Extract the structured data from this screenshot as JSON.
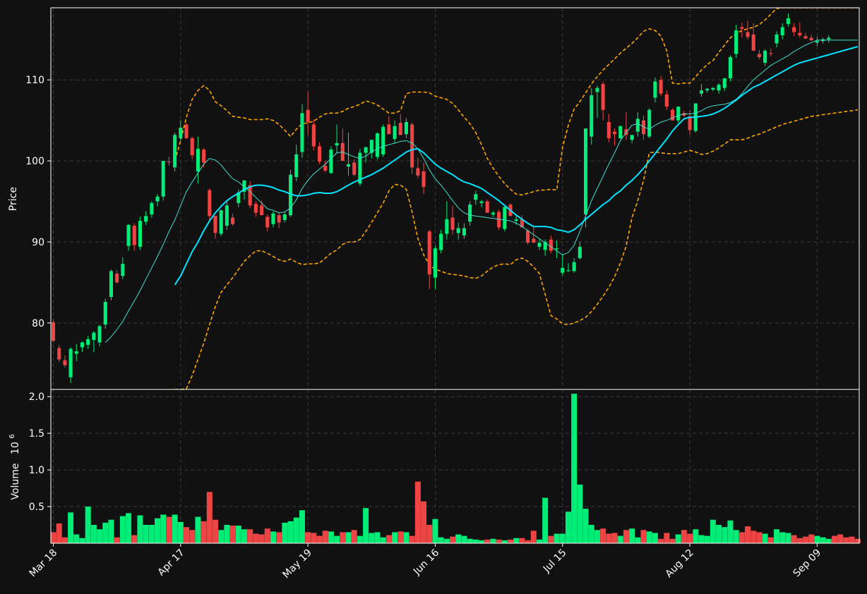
{
  "chart_data": {
    "type": "candlestick",
    "colors": {
      "background": "#111111",
      "up": "#00ee77",
      "down": "#ee4444",
      "bollinger": "#ffa500",
      "ma_short": "#40e0d0",
      "ma_long": "#00e5ff",
      "grid": "#3a3a3a",
      "text": "#ffffff"
    },
    "price_panel": {
      "ylabel": "Price",
      "yticks": [
        80,
        90,
        100,
        110
      ],
      "ylim": [
        71.8,
        118.9
      ],
      "grid": true
    },
    "volume_panel": {
      "ylabel": "Volume",
      "ylabel_multiplier": "10",
      "ylabel_exponent": "6",
      "yticks": [
        "0.5",
        "1.0",
        "1.5",
        "2.0"
      ],
      "ytick_values": [
        0.5,
        1.0,
        1.5,
        2.0
      ],
      "ylim": [
        0,
        2.06
      ],
      "grid": true
    },
    "x_axis": {
      "tick_labels": [
        "Mar 18",
        "Apr 17",
        "May 19",
        "Jun 16",
        "Jul 15",
        "Aug 12",
        "Sep 09"
      ],
      "tick_index": [
        0,
        22,
        44,
        66,
        88,
        110,
        132
      ],
      "label_rotation": 45,
      "n_candles": 140
    },
    "candles_ohlc": [
      [
        80.1,
        80.5,
        77.6,
        77.8
      ],
      [
        76.9,
        77.3,
        75.2,
        75.5
      ],
      [
        75.4,
        76.0,
        74.5,
        74.8
      ],
      [
        73.3,
        77.0,
        72.6,
        76.8
      ],
      [
        76.2,
        77.4,
        75.3,
        76.5
      ],
      [
        77.0,
        77.7,
        76.4,
        77.6
      ],
      [
        77.3,
        78.4,
        76.8,
        78.0
      ],
      [
        77.9,
        79.0,
        76.4,
        78.8
      ],
      [
        77.6,
        79.8,
        77.1,
        79.6
      ],
      [
        79.8,
        83.0,
        79.3,
        82.6
      ],
      [
        83.2,
        86.6,
        82.8,
        86.4
      ],
      [
        86.1,
        86.5,
        84.9,
        85.0
      ],
      [
        85.8,
        88.1,
        85.4,
        87.3
      ],
      [
        89.5,
        92.2,
        88.9,
        92.1
      ],
      [
        92.0,
        92.3,
        88.9,
        89.6
      ],
      [
        89.4,
        93.1,
        89.0,
        92.6
      ],
      [
        92.5,
        93.8,
        92.1,
        93.2
      ],
      [
        93.4,
        95.0,
        93.0,
        94.8
      ],
      [
        95.0,
        95.9,
        94.4,
        95.6
      ],
      [
        95.6,
        100.0,
        95.1,
        100.0
      ],
      [
        99.9,
        100.5,
        99.4,
        99.8
      ],
      [
        99.2,
        103.5,
        98.7,
        103.2
      ],
      [
        102.8,
        105.0,
        102.5,
        104.1
      ],
      [
        104.5,
        104.7,
        102.7,
        102.8
      ],
      [
        102.8,
        103.0,
        100.2,
        100.7
      ],
      [
        98.7,
        103.0,
        97.2,
        101.5
      ],
      [
        101.4,
        101.6,
        99.2,
        99.8
      ],
      [
        96.4,
        96.6,
        92.6,
        93.2
      ],
      [
        93.2,
        93.3,
        90.4,
        91.1
      ],
      [
        91.0,
        94.0,
        90.7,
        93.9
      ],
      [
        92.0,
        95.0,
        91.5,
        94.5
      ],
      [
        93.0,
        93.5,
        92.0,
        92.2
      ],
      [
        94.8,
        96.5,
        94.3,
        96.1
      ],
      [
        96.2,
        97.0,
        95.2,
        97.6
      ],
      [
        97.0,
        97.5,
        94.2,
        94.5
      ],
      [
        94.7,
        95.0,
        93.1,
        93.6
      ],
      [
        94.5,
        95.1,
        93.5,
        93.3
      ],
      [
        93.1,
        93.4,
        91.3,
        91.8
      ],
      [
        92.2,
        93.8,
        91.8,
        93.5
      ],
      [
        93.3,
        93.6,
        91.7,
        92.4
      ],
      [
        92.7,
        93.6,
        92.4,
        93.4
      ],
      [
        93.3,
        98.9,
        93.1,
        98.3
      ],
      [
        98.0,
        102.0,
        97.5,
        100.8
      ],
      [
        101.1,
        107.0,
        100.4,
        105.9
      ],
      [
        106.3,
        108.5,
        103.2,
        104.8
      ],
      [
        104.5,
        105.1,
        101.3,
        101.8
      ],
      [
        101.8,
        102.3,
        99.6,
        99.9
      ],
      [
        99.4,
        100.0,
        98.6,
        98.8
      ],
      [
        98.5,
        101.8,
        98.4,
        101.4
      ],
      [
        101.9,
        104.5,
        101.0,
        102.2
      ],
      [
        102.2,
        104.0,
        101.1,
        100.0
      ],
      [
        99.3,
        103.5,
        98.2,
        99.6
      ],
      [
        99.8,
        100.2,
        98.1,
        98.3
      ],
      [
        97.2,
        101.5,
        96.9,
        101.0
      ],
      [
        101.0,
        101.5,
        99.8,
        101.7
      ],
      [
        101.0,
        102.6,
        100.3,
        102.6
      ],
      [
        100.5,
        103.5,
        100.2,
        103.4
      ],
      [
        100.8,
        104.5,
        100.5,
        104.2
      ],
      [
        104.5,
        105.5,
        103.4,
        103.3
      ],
      [
        102.7,
        105.0,
        102.1,
        104.3
      ],
      [
        104.7,
        105.8,
        103.6,
        103.2
      ],
      [
        103.3,
        105.3,
        102.8,
        104.8
      ],
      [
        104.5,
        104.7,
        98.4,
        99.2
      ],
      [
        99.1,
        100.4,
        97.9,
        98.2
      ],
      [
        98.7,
        99.8,
        95.9,
        96.8
      ],
      [
        91.3,
        91.5,
        84.2,
        86.0
      ],
      [
        85.6,
        89.5,
        84.2,
        89.2
      ],
      [
        89.0,
        91.5,
        88.6,
        91.0
      ],
      [
        91.0,
        95.0,
        90.3,
        92.8
      ],
      [
        93.0,
        94.5,
        90.9,
        91.5
      ],
      [
        91.1,
        92.4,
        90.3,
        91.7
      ],
      [
        90.8,
        92.3,
        90.4,
        91.7
      ],
      [
        92.5,
        95.0,
        92.0,
        94.6
      ],
      [
        95.2,
        96.3,
        94.6,
        95.9
      ],
      [
        94.8,
        95.2,
        94.3,
        95.0
      ],
      [
        95.0,
        95.2,
        93.8,
        93.6
      ],
      [
        93.4,
        93.8,
        93.1,
        93.6
      ],
      [
        93.7,
        94.0,
        91.5,
        91.8
      ],
      [
        91.6,
        94.5,
        91.3,
        94.3
      ],
      [
        94.6,
        94.8,
        93.7,
        93.2
      ],
      [
        92.6,
        93.3,
        92.1,
        92.8
      ],
      [
        92.8,
        93.3,
        91.8,
        91.8
      ],
      [
        91.4,
        91.6,
        89.7,
        89.9
      ],
      [
        90.4,
        92.0,
        90.2,
        89.9
      ],
      [
        89.4,
        90.4,
        89.0,
        89.9
      ],
      [
        89.0,
        90.3,
        88.3,
        90.0
      ],
      [
        90.3,
        90.8,
        88.6,
        88.9
      ],
      [
        89.2,
        90.2,
        88.0,
        89.2
      ],
      [
        86.2,
        88.5,
        85.9,
        86.8
      ],
      [
        86.4,
        87.4,
        86.3,
        86.5
      ],
      [
        86.4,
        88.0,
        86.2,
        87.5
      ],
      [
        88.0,
        90.0,
        87.8,
        89.4
      ],
      [
        93.4,
        104.0,
        91.8,
        104.0
      ],
      [
        103.0,
        109.0,
        102.0,
        108.1
      ],
      [
        108.5,
        109.3,
        105.3,
        109.0
      ],
      [
        109.5,
        109.8,
        105.0,
        106.3
      ],
      [
        104.8,
        105.8,
        102.3,
        102.8
      ],
      [
        103.6,
        104.0,
        101.9,
        103.3
      ],
      [
        102.8,
        104.2,
        102.7,
        104.3
      ],
      [
        103.9,
        106.0,
        102.6,
        103.2
      ],
      [
        102.6,
        103.2,
        102.2,
        103.2
      ],
      [
        103.6,
        106.0,
        103.0,
        105.2
      ],
      [
        105.0,
        105.6,
        102.6,
        103.3
      ],
      [
        103.0,
        106.5,
        102.8,
        106.3
      ],
      [
        107.8,
        110.3,
        107.2,
        109.8
      ],
      [
        110.0,
        110.5,
        108.0,
        108.3
      ],
      [
        108.2,
        108.7,
        106.3,
        106.7
      ],
      [
        106.3,
        106.5,
        105.0,
        105.0
      ],
      [
        105.0,
        106.7,
        104.7,
        106.7
      ],
      [
        105.9,
        106.2,
        105.4,
        105.6
      ],
      [
        105.5,
        106.2,
        103.2,
        103.8
      ],
      [
        103.7,
        107.0,
        103.5,
        107.1
      ],
      [
        108.3,
        109.5,
        107.9,
        108.7
      ],
      [
        108.7,
        109.0,
        108.4,
        108.9
      ],
      [
        108.8,
        109.1,
        108.6,
        109.0
      ],
      [
        108.7,
        109.6,
        108.3,
        109.4
      ],
      [
        109.0,
        109.9,
        108.6,
        110.2
      ],
      [
        110.2,
        113.0,
        109.8,
        112.8
      ],
      [
        113.2,
        116.8,
        112.7,
        116.1
      ],
      [
        116.5,
        117.1,
        115.2,
        116.3
      ],
      [
        115.9,
        117.3,
        115.0,
        115.3
      ],
      [
        115.6,
        117.0,
        113.7,
        113.6
      ],
      [
        113.2,
        113.7,
        112.5,
        112.8
      ],
      [
        112.1,
        113.8,
        111.7,
        113.6
      ],
      [
        113.3,
        113.9,
        112.9,
        113.2
      ],
      [
        114.5,
        116.0,
        114.0,
        115.6
      ],
      [
        115.5,
        117.0,
        115.0,
        116.5
      ],
      [
        116.9,
        118.2,
        116.6,
        117.6
      ],
      [
        116.5,
        117.0,
        115.4,
        115.9
      ],
      [
        115.8,
        117.1,
        115.3,
        115.5
      ],
      [
        115.4,
        115.8,
        115.1,
        115.1
      ],
      [
        115.2,
        115.6,
        114.8,
        114.9
      ],
      [
        114.6,
        115.3,
        114.2,
        114.8
      ],
      [
        114.8,
        115.2,
        114.5,
        115.0
      ],
      [
        115.0,
        115.5,
        114.6,
        115.2
      ]
    ],
    "volume_millions": [
      0.15,
      0.27,
      0.08,
      0.42,
      0.12,
      0.07,
      0.5,
      0.25,
      0.19,
      0.28,
      0.32,
      0.08,
      0.37,
      0.41,
      0.11,
      0.38,
      0.25,
      0.25,
      0.34,
      0.39,
      0.36,
      0.39,
      0.29,
      0.22,
      0.18,
      0.36,
      0.3,
      0.7,
      0.32,
      0.18,
      0.25,
      0.24,
      0.24,
      0.19,
      0.19,
      0.13,
      0.12,
      0.2,
      0.16,
      0.15,
      0.28,
      0.3,
      0.35,
      0.45,
      0.15,
      0.14,
      0.1,
      0.17,
      0.16,
      0.1,
      0.15,
      0.15,
      0.18,
      0.1,
      0.48,
      0.14,
      0.15,
      0.08,
      0.11,
      0.15,
      0.16,
      0.15,
      0.1,
      0.84,
      0.57,
      0.25,
      0.33,
      0.08,
      0.06,
      0.09,
      0.12,
      0.1,
      0.06,
      0.05,
      0.04,
      0.05,
      0.06,
      0.05,
      0.04,
      0.05,
      0.07,
      0.07,
      0.04,
      0.17,
      0.05,
      0.62,
      0.1,
      0.13,
      0.13,
      0.43,
      2.04,
      0.8,
      0.47,
      0.25,
      0.18,
      0.2,
      0.13,
      0.14,
      0.1,
      0.18,
      0.2,
      0.08,
      0.18,
      0.16,
      0.14,
      0.06,
      0.14,
      0.06,
      0.12,
      0.18,
      0.13,
      0.19,
      0.11,
      0.1,
      0.32,
      0.25,
      0.22,
      0.31,
      0.18,
      0.15,
      0.23,
      0.17,
      0.15,
      0.13,
      0.08,
      0.19,
      0.15,
      0.14,
      0.11,
      0.07,
      0.09,
      0.12,
      0.1,
      0.08,
      0.06,
      0.1,
      0.12,
      0.08,
      0.09,
      0.06
    ],
    "ma_short": [
      null,
      null,
      null,
      null,
      null,
      null,
      null,
      null,
      null,
      77.6,
      78.3,
      79.2,
      80.2,
      81.5,
      82.7,
      84.0,
      85.4,
      86.8,
      88.2,
      89.7,
      91.3,
      92.7,
      94.5,
      96.2,
      97.4,
      98.5,
      99.6,
      100.3,
      100.1,
      99.5,
      98.6,
      97.8,
      97.4,
      96.8,
      96.2,
      95.5,
      94.8,
      94.1,
      93.9,
      93.6,
      93.7,
      94.2,
      95.2,
      96.6,
      97.6,
      98.4,
      99.0,
      99.6,
      100.3,
      101.0,
      101.1,
      100.8,
      100.5,
      100.3,
      100.6,
      101.1,
      101.5,
      101.8,
      102.0,
      102.2,
      102.4,
      102.5,
      102.2,
      101.5,
      100.3,
      98.9,
      97.8,
      97.0,
      96.1,
      95.1,
      94.2,
      93.6,
      93.3,
      93.2,
      93.1,
      93.0,
      92.9,
      92.8,
      92.7,
      92.6,
      92.3,
      91.9,
      91.4,
      90.9,
      90.4,
      89.9,
      89.4,
      88.9,
      88.4,
      88.7,
      89.6,
      91.3,
      93.2,
      95.1,
      96.6,
      98.1,
      99.6,
      101.0,
      102.5,
      103.5,
      104.4,
      104.6,
      104.2,
      103.9,
      104.4,
      104.8,
      105.0,
      105.3,
      105.6,
      105.8,
      105.8,
      105.9,
      106.2,
      106.6,
      106.8,
      106.9,
      107.0,
      107.2,
      107.6,
      108.3,
      109.2,
      110.0,
      110.6,
      111.2,
      111.8,
      112.2,
      112.6,
      113.0,
      113.5,
      113.9,
      114.3,
      114.6,
      114.9,
      114.9,
      114.9,
      114.9,
      114.9,
      114.9,
      114.9,
      114.9
    ],
    "ma_long": [
      null,
      null,
      null,
      null,
      null,
      null,
      null,
      null,
      null,
      null,
      null,
      null,
      null,
      null,
      null,
      null,
      null,
      null,
      null,
      null,
      null,
      84.7,
      85.8,
      87.3,
      88.8,
      90.0,
      91.4,
      92.6,
      93.6,
      94.4,
      95.1,
      95.6,
      96.0,
      96.5,
      96.8,
      97.0,
      97.0,
      96.9,
      96.7,
      96.4,
      96.2,
      95.9,
      95.7,
      95.7,
      95.8,
      96.0,
      96.1,
      96.0,
      96.0,
      96.2,
      96.6,
      97.0,
      97.4,
      97.7,
      98.0,
      98.3,
      98.7,
      99.1,
      99.6,
      100.1,
      100.6,
      101.1,
      101.4,
      101.5,
      101.0,
      100.3,
      99.6,
      99.1,
      98.7,
      98.3,
      97.8,
      97.4,
      97.2,
      96.9,
      96.6,
      96.1,
      95.6,
      95.1,
      94.5,
      93.9,
      93.3,
      92.8,
      92.3,
      91.9,
      91.9,
      91.9,
      91.8,
      91.5,
      91.4,
      91.2,
      91.5,
      92.1,
      92.8,
      93.4,
      94.0,
      94.6,
      95.1,
      95.8,
      96.3,
      97.0,
      97.6,
      98.3,
      99.1,
      100.0,
      100.9,
      101.8,
      102.7,
      103.7,
      104.5,
      105.2,
      105.4,
      105.4,
      105.5,
      105.6,
      105.8,
      106.1,
      106.5,
      107.0,
      107.5,
      108.1,
      108.6,
      109.1,
      109.4,
      109.8,
      110.2,
      110.6,
      111.0,
      111.4,
      111.8,
      112.1,
      112.3,
      112.5,
      112.7,
      112.9,
      113.1,
      113.3,
      113.5,
      113.7,
      113.9,
      114.1
    ],
    "bollinger_upper": [
      null,
      null,
      null,
      null,
      null,
      null,
      null,
      null,
      null,
      null,
      null,
      null,
      null,
      null,
      null,
      null,
      null,
      null,
      null,
      null,
      null,
      100.0,
      102.5,
      105.4,
      107.6,
      108.7,
      109.3,
      108.7,
      107.3,
      106.8,
      106.2,
      105.5,
      105.4,
      105.3,
      105.1,
      105.1,
      105.1,
      105.2,
      105.0,
      104.5,
      103.8,
      103.0,
      103.9,
      104.6,
      104.7,
      104.9,
      105.4,
      105.8,
      105.9,
      105.9,
      106.1,
      106.5,
      106.7,
      107.0,
      107.4,
      107.2,
      106.9,
      106.4,
      105.9,
      105.9,
      106.2,
      108.3,
      108.5,
      108.5,
      108.5,
      108.4,
      108.0,
      107.8,
      107.6,
      107.1,
      106.3,
      105.4,
      104.6,
      103.5,
      102.0,
      100.3,
      99.1,
      98.1,
      97.2,
      96.5,
      95.9,
      95.8,
      96.0,
      96.2,
      96.4,
      96.4,
      96.5,
      96.4,
      101.7,
      104.4,
      106.4,
      107.3,
      108.4,
      109.5,
      110.4,
      111.2,
      111.9,
      112.6,
      113.3,
      113.9,
      114.5,
      115.2,
      116.0,
      116.3,
      116.1,
      115.4,
      113.6,
      109.6,
      109.5,
      109.6,
      109.6,
      110.4,
      111.2,
      111.9,
      112.4,
      113.4,
      114.3,
      115.2,
      115.7,
      116.1,
      116.3,
      116.5,
      116.8,
      117.4,
      118.1,
      118.8,
      119.5,
      120.1,
      120.7,
      121.2,
      121.7,
      122.0,
      122.3,
      122.5,
      122.7,
      122.9,
      123.1,
      123.2,
      123.3,
      123.4
    ],
    "bollinger_lower": [
      null,
      null,
      null,
      null,
      null,
      null,
      null,
      null,
      null,
      null,
      null,
      null,
      null,
      null,
      null,
      null,
      null,
      null,
      null,
      null,
      null,
      69.4,
      70.3,
      71.9,
      73.5,
      75.5,
      77.5,
      79.8,
      82.0,
      83.8,
      84.7,
      85.6,
      86.6,
      87.6,
      88.3,
      88.9,
      88.9,
      88.6,
      88.2,
      87.8,
      87.6,
      87.9,
      87.5,
      87.2,
      87.3,
      87.3,
      87.4,
      88.0,
      88.6,
      89.0,
      89.7,
      90.0,
      90.0,
      90.3,
      91.3,
      92.4,
      93.6,
      94.8,
      96.3,
      97.1,
      97.0,
      96.5,
      93.7,
      90.4,
      88.4,
      87.2,
      86.6,
      86.4,
      86.1,
      86.0,
      85.9,
      85.8,
      85.6,
      85.5,
      85.8,
      86.4,
      86.9,
      87.2,
      87.3,
      87.2,
      87.8,
      88.0,
      87.6,
      86.9,
      86.1,
      83.5,
      80.9,
      80.5,
      79.9,
      79.8,
      80.0,
      80.3,
      80.7,
      81.4,
      82.3,
      83.3,
      84.4,
      85.7,
      87.4,
      89.5,
      93.0,
      95.1,
      97.6,
      101.0,
      101.1,
      101.0,
      100.9,
      100.9,
      100.9,
      101.1,
      101.3,
      101.1,
      100.8,
      100.9,
      101.2,
      101.6,
      102.1,
      102.6,
      102.6,
      102.6,
      102.8,
      103.1,
      103.3,
      103.6,
      103.9,
      104.2,
      104.5,
      104.7,
      104.9,
      105.1,
      105.3,
      105.5,
      105.6,
      105.7,
      105.8,
      105.9,
      106.0,
      106.1,
      106.2,
      106.3
    ]
  }
}
